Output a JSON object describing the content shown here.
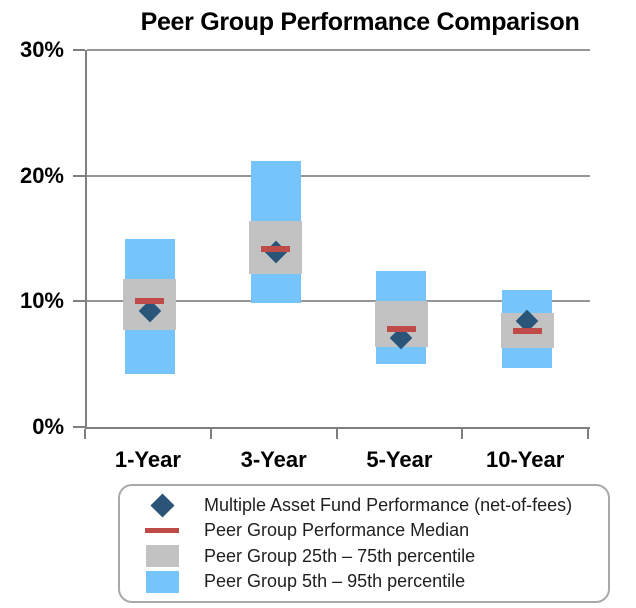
{
  "title": "Peer Group Performance Comparison",
  "colors": {
    "fund_diamond_navy": "#2A5578",
    "median_red": "#BE4B48",
    "band_25_75_gray": "#C2C2C2",
    "band_5_95_blue": "#75C4FB",
    "gridline_gray": "#969696",
    "axis_gray": "#7F7F7F",
    "legend_border_gray": "#A9A9A9",
    "text_black": "#000000"
  },
  "chart_data": {
    "type": "bar",
    "subtype": "floating-percentile-bands-with-markers",
    "title": "Peer Group Performance Comparison",
    "categories": [
      "1-Year",
      "3-Year",
      "5-Year",
      "10-Year"
    ],
    "y_axis": {
      "ticks": [
        "0%",
        "10%",
        "20%",
        "30%"
      ],
      "tick_values": [
        0,
        10,
        20,
        30
      ],
      "ylim": [
        0,
        30
      ],
      "grid": true
    },
    "series": [
      {
        "name": "Peer Group 5th – 95th percentile",
        "type": "floating-bar",
        "color": "#75C4FB",
        "low": [
          4.2,
          9.9,
          5.0,
          4.7
        ],
        "high": [
          15.0,
          21.2,
          12.4,
          10.9
        ]
      },
      {
        "name": "Peer Group 25th – 75th percentile",
        "type": "floating-bar",
        "color": "#C2C2C2",
        "low": [
          7.7,
          12.2,
          6.4,
          6.3
        ],
        "high": [
          11.8,
          16.4,
          10.0,
          9.1
        ]
      },
      {
        "name": "Peer Group Performance Median",
        "type": "dash-marker",
        "color": "#BE4B48",
        "values": [
          10.0,
          14.2,
          7.8,
          7.6
        ]
      },
      {
        "name": "Multiple Asset Fund Performance (net-of-fees)",
        "type": "diamond-marker",
        "color": "#2A5578",
        "values": [
          9.2,
          13.9,
          7.1,
          8.4
        ]
      }
    ],
    "legend_position": "bottom"
  },
  "legend": {
    "items": [
      {
        "label": "Multiple Asset Fund Performance (net-of-fees)",
        "marker": "diamond-icon",
        "color": "#2A5578"
      },
      {
        "label": "Peer Group Performance Median",
        "marker": "median-line-icon",
        "color": "#BE4B48"
      },
      {
        "label": "Peer Group 25th – 75th percentile",
        "marker": "gray-band-swatch-icon",
        "color": "#C2C2C2"
      },
      {
        "label": "Peer Group 5th – 95th percentile",
        "marker": "blue-band-swatch-icon",
        "color": "#75C4FB"
      }
    ]
  }
}
